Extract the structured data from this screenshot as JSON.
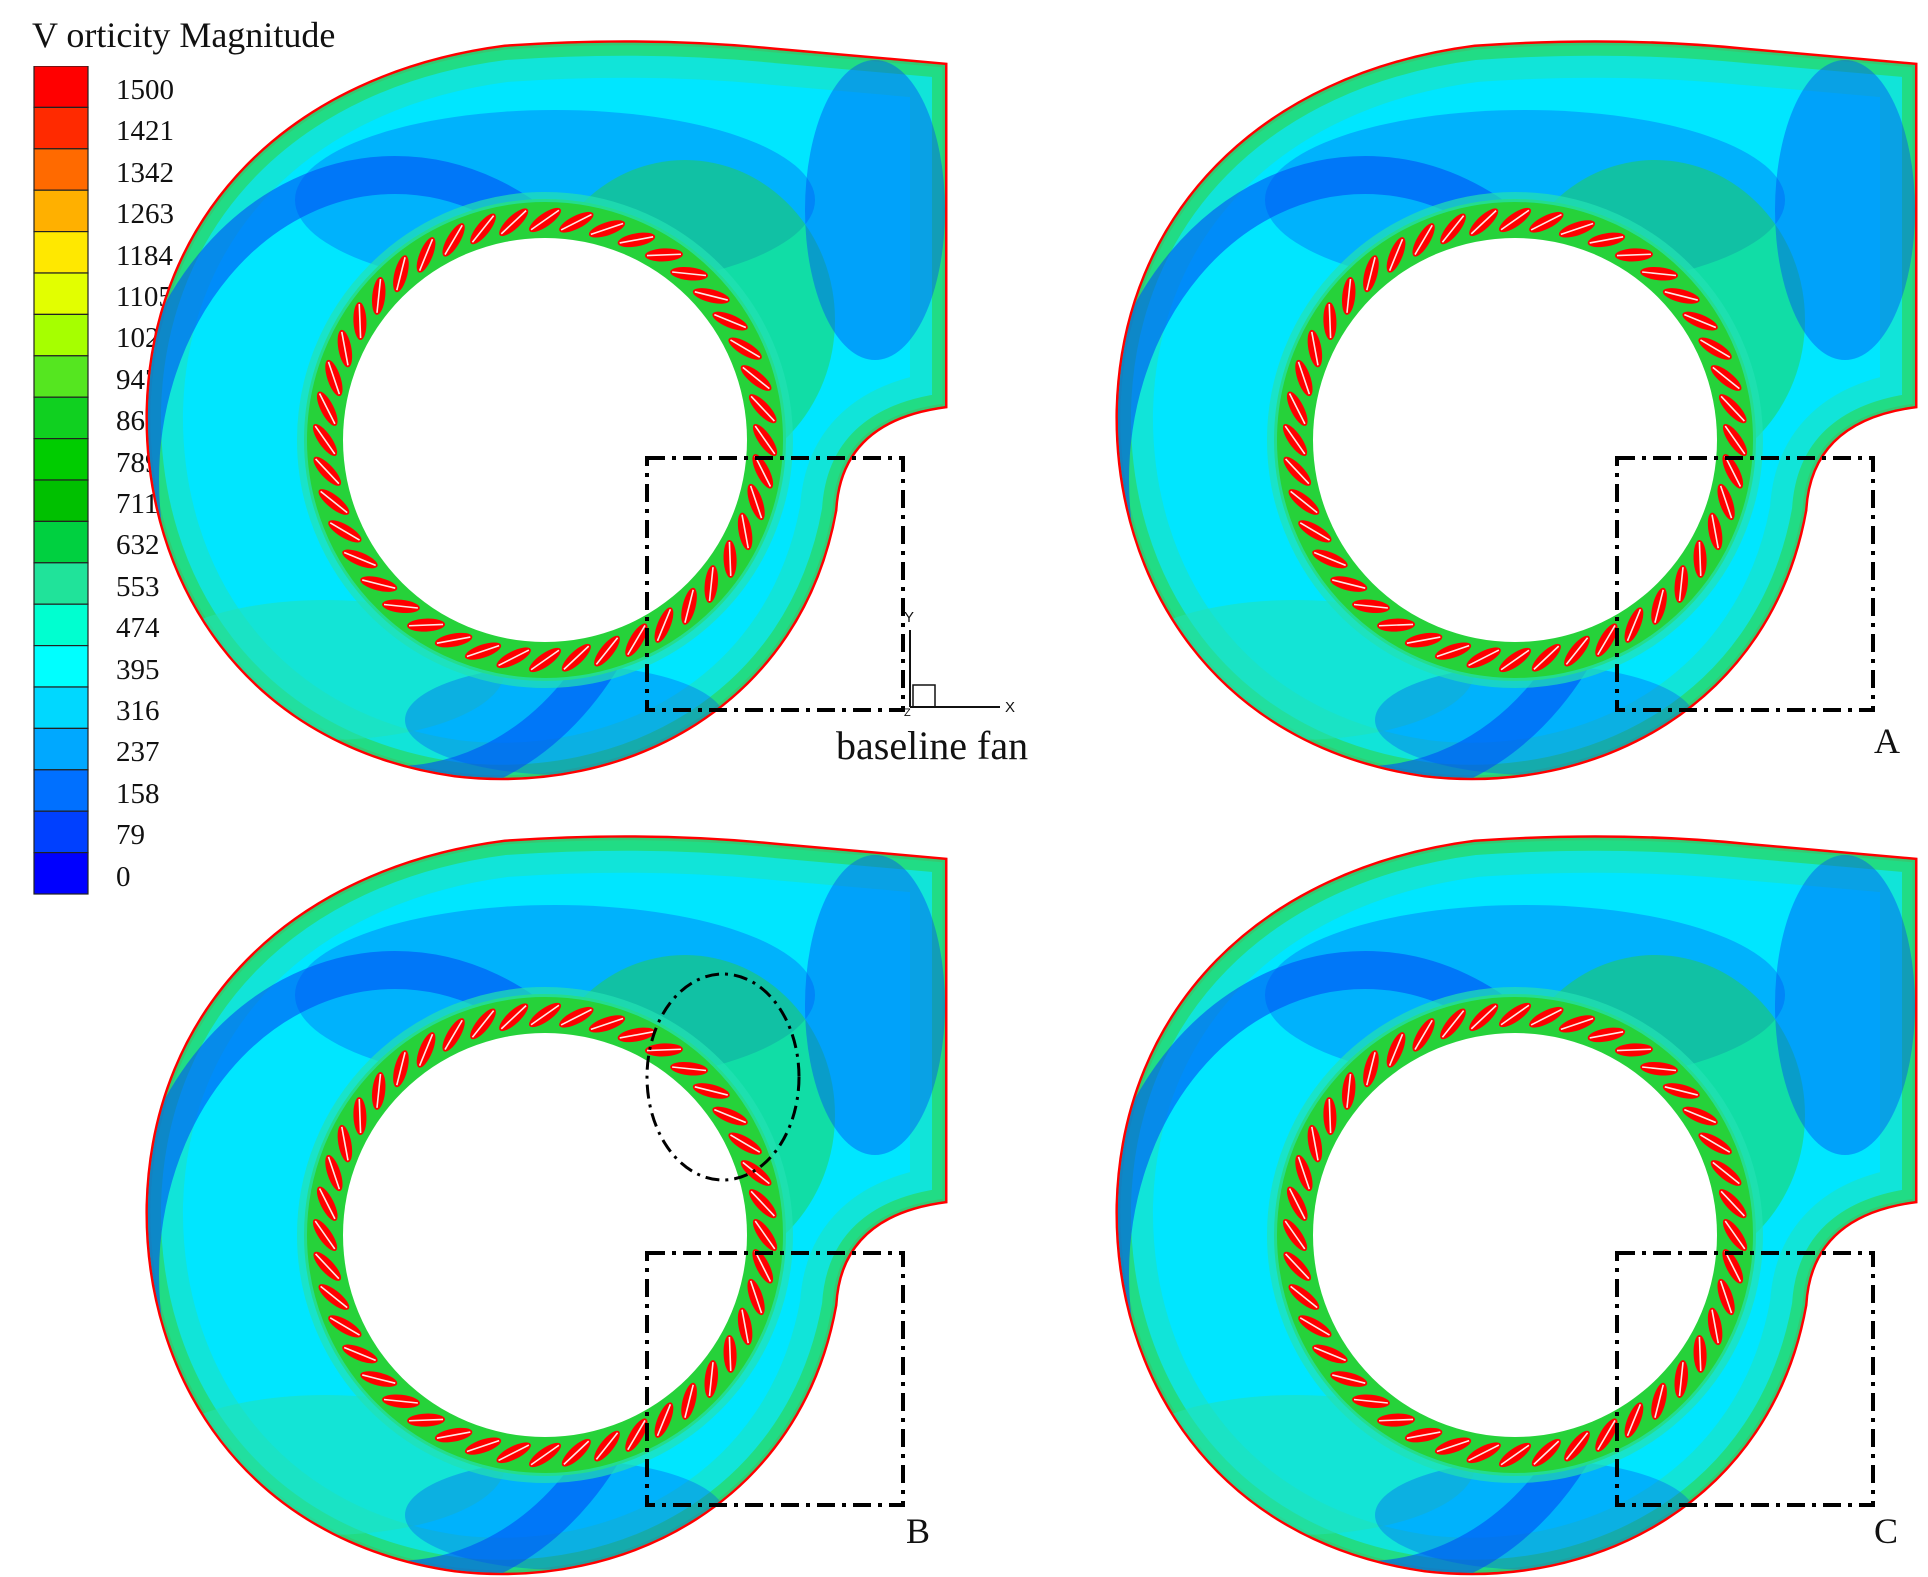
{
  "legend": {
    "title": "V orticity Magnitude",
    "levels": [
      "1500",
      "1421",
      "1342",
      "1263",
      "1184",
      "1105",
      "1026",
      "947",
      "868",
      "789",
      "711",
      "632",
      "553",
      "474",
      "395",
      "316",
      "237",
      "158",
      "79",
      "0"
    ],
    "colors": [
      "#ff0000",
      "#ff2a00",
      "#ff6a00",
      "#ffb000",
      "#ffe800",
      "#e2ff00",
      "#a6ff00",
      "#55e620",
      "#10d020",
      "#00cc00",
      "#00c000",
      "#00d040",
      "#20e39a",
      "#00ffd0",
      "#00ffff",
      "#00d8ff",
      "#00a8ff",
      "#0070ff",
      "#0040ff",
      "#0000ff"
    ]
  },
  "axes": {
    "y": "Y",
    "x": "X",
    "z": "Z"
  },
  "caption": "baseline fan",
  "panels": [
    {
      "id": "baseline",
      "label": ""
    },
    {
      "id": "A",
      "label": "A"
    },
    {
      "id": "B",
      "label": "B"
    },
    {
      "id": "C",
      "label": "C"
    }
  ],
  "colors": {
    "red": "#ff0000",
    "cyan": "#00e6ff",
    "green": "#26d23a",
    "blue": "#0050f5",
    "teal": "#22e1b4",
    "inner": "#9ad8ff"
  }
}
